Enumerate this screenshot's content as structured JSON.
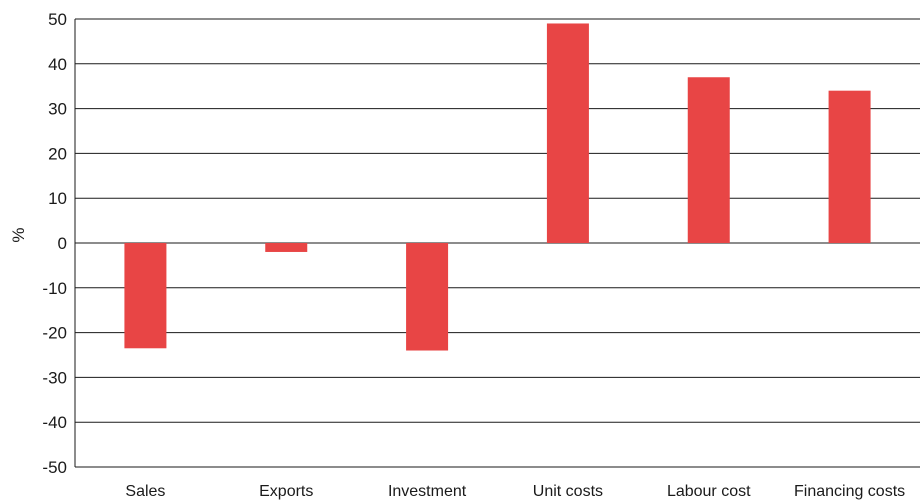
{
  "chart_data": {
    "type": "bar",
    "title": "",
    "xlabel": "",
    "ylabel": "%",
    "ylim": [
      -50,
      50
    ],
    "yticks": [
      50,
      40,
      30,
      20,
      10,
      0,
      -10,
      -20,
      -30,
      -40,
      -50
    ],
    "grid": true,
    "categories": [
      "Sales",
      "Exports",
      "Investment",
      "Unit costs",
      "Labour cost",
      "Financing costs"
    ],
    "values": [
      -23.5,
      -2,
      -24,
      49,
      37,
      34
    ],
    "bar_color": "#e84545"
  }
}
